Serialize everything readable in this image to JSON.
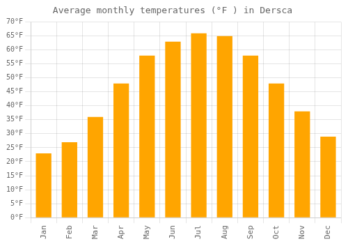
{
  "chart_data": {
    "type": "bar",
    "title": "Average monthly temperatures (°F ) in Dersca",
    "categories": [
      "Jan",
      "Feb",
      "Mar",
      "Apr",
      "May",
      "Jun",
      "Jul",
      "Aug",
      "Sep",
      "Oct",
      "Nov",
      "Dec"
    ],
    "values": [
      23,
      27,
      36,
      48,
      58,
      63,
      66,
      65,
      58,
      48,
      38,
      29
    ],
    "color": "#FFA500",
    "ylim": [
      0,
      70
    ],
    "yticks": [
      {
        "value": 0,
        "label": "0°F"
      },
      {
        "value": 5,
        "label": "5°F"
      },
      {
        "value": 10,
        "label": "10°F"
      },
      {
        "value": 15,
        "label": "15°F"
      },
      {
        "value": 20,
        "label": "20°F"
      },
      {
        "value": 25,
        "label": "25°F"
      },
      {
        "value": 30,
        "label": "30°F"
      },
      {
        "value": 35,
        "label": "35°F"
      },
      {
        "value": 40,
        "label": "40°F"
      },
      {
        "value": 45,
        "label": "45°F"
      },
      {
        "value": 50,
        "label": "50°F"
      },
      {
        "value": 55,
        "label": "55°F"
      },
      {
        "value": 60,
        "label": "60°F"
      },
      {
        "value": 65,
        "label": "65°F"
      },
      {
        "value": 70,
        "label": "70°F"
      }
    ],
    "grid": true
  }
}
